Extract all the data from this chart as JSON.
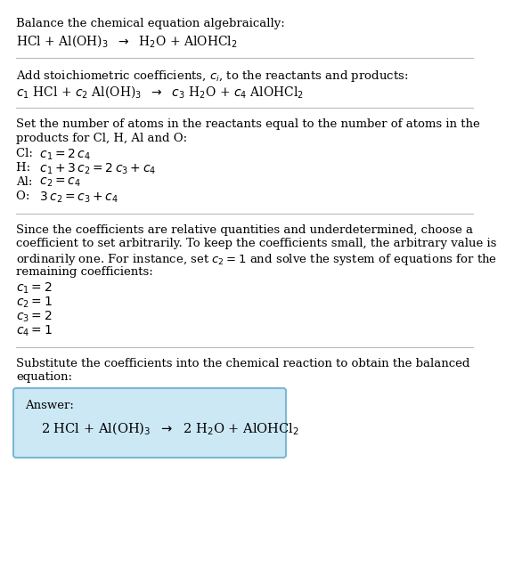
{
  "bg_color": "#ffffff",
  "text_color": "#000000",
  "section1_title": "Balance the chemical equation algebraically:",
  "section1_eq": "HCl + Al(OH)$_3$  $\\rightarrow$  H$_2$O + AlOHCl$_2$",
  "section2_title": "Add stoichiometric coefficients, $c_i$, to the reactants and products:",
  "section2_eq": "$c_1$ HCl + $c_2$ Al(OH)$_3$  $\\rightarrow$  $c_3$ H$_2$O + $c_4$ AlOHCl$_2$",
  "section3_title_lines": [
    "Set the number of atoms in the reactants equal to the number of atoms in the",
    "products for Cl, H, Al and O:"
  ],
  "section3_lines": [
    [
      "Cl: ",
      " $c_1 = 2\\,c_4$"
    ],
    [
      "H: ",
      " $c_1 + 3\\,c_2 = 2\\,c_3 + c_4$"
    ],
    [
      "Al: ",
      " $c_2 = c_4$"
    ],
    [
      "O: ",
      " $3\\,c_2 = c_3 + c_4$"
    ]
  ],
  "section4_title_lines": [
    "Since the coefficients are relative quantities and underdetermined, choose a",
    "coefficient to set arbitrarily. To keep the coefficients small, the arbitrary value is",
    "ordinarily one. For instance, set $c_2 = 1$ and solve the system of equations for the",
    "remaining coefficients:"
  ],
  "section4_lines": [
    "$c_1 = 2$",
    "$c_2 = 1$",
    "$c_3 = 2$",
    "$c_4 = 1$"
  ],
  "section5_title_lines": [
    "Substitute the coefficients into the chemical reaction to obtain the balanced",
    "equation:"
  ],
  "answer_label": "Answer:",
  "answer_eq": "2 HCl + Al(OH)$_3$  $\\rightarrow$  2 H$_2$O + AlOHCl$_2$",
  "answer_box_color": "#cce8f4",
  "answer_box_edge": "#7ab8d4",
  "divider_color": "#bbbbbb",
  "fs_body": 9.5,
  "fs_eq": 10.0,
  "fs_answer": 10.5
}
